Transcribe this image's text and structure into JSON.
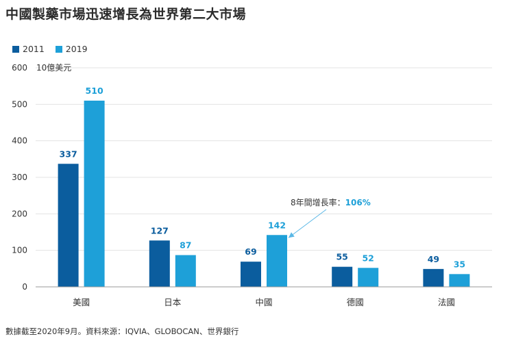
{
  "title": "中國製藥市場迅速增長為世界第二大市場",
  "footnote": "數據截至2020年9月。資料來源：IQVIA、GLOBOCAN、世界銀行",
  "colors": {
    "s2011": "#0b5d9e",
    "s2019": "#1ea0d8",
    "grid": "#e3e3e3",
    "axis": "#9a9a9a"
  },
  "chart_data": {
    "type": "bar",
    "unit_label": "10億美元",
    "categories": [
      "美國",
      "日本",
      "中國",
      "德國",
      "法國"
    ],
    "series": [
      {
        "name": "2011",
        "values": [
          337,
          127,
          69,
          55,
          49
        ]
      },
      {
        "name": "2019",
        "values": [
          510,
          87,
          142,
          52,
          35
        ]
      }
    ],
    "ylim": [
      0,
      600
    ],
    "yticks": [
      0,
      100,
      200,
      300,
      400,
      500,
      600
    ],
    "grid": true,
    "legend": "top-left",
    "annotation": {
      "text": "8年間增長率：",
      "value": "106%",
      "category": "中國",
      "series": "2019"
    }
  }
}
